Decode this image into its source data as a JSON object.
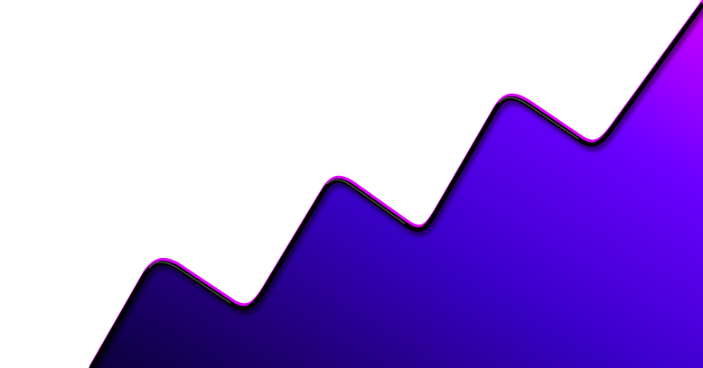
{
  "graphic": {
    "colors": {
      "background": "#ffffff",
      "fill_dark": "#0b0038",
      "fill_mid": "#5a00f0",
      "fill_light": "#c400ff",
      "outline": "#000000",
      "highlight": "#e000ff",
      "gridline": "#d9d9d9"
    }
  }
}
